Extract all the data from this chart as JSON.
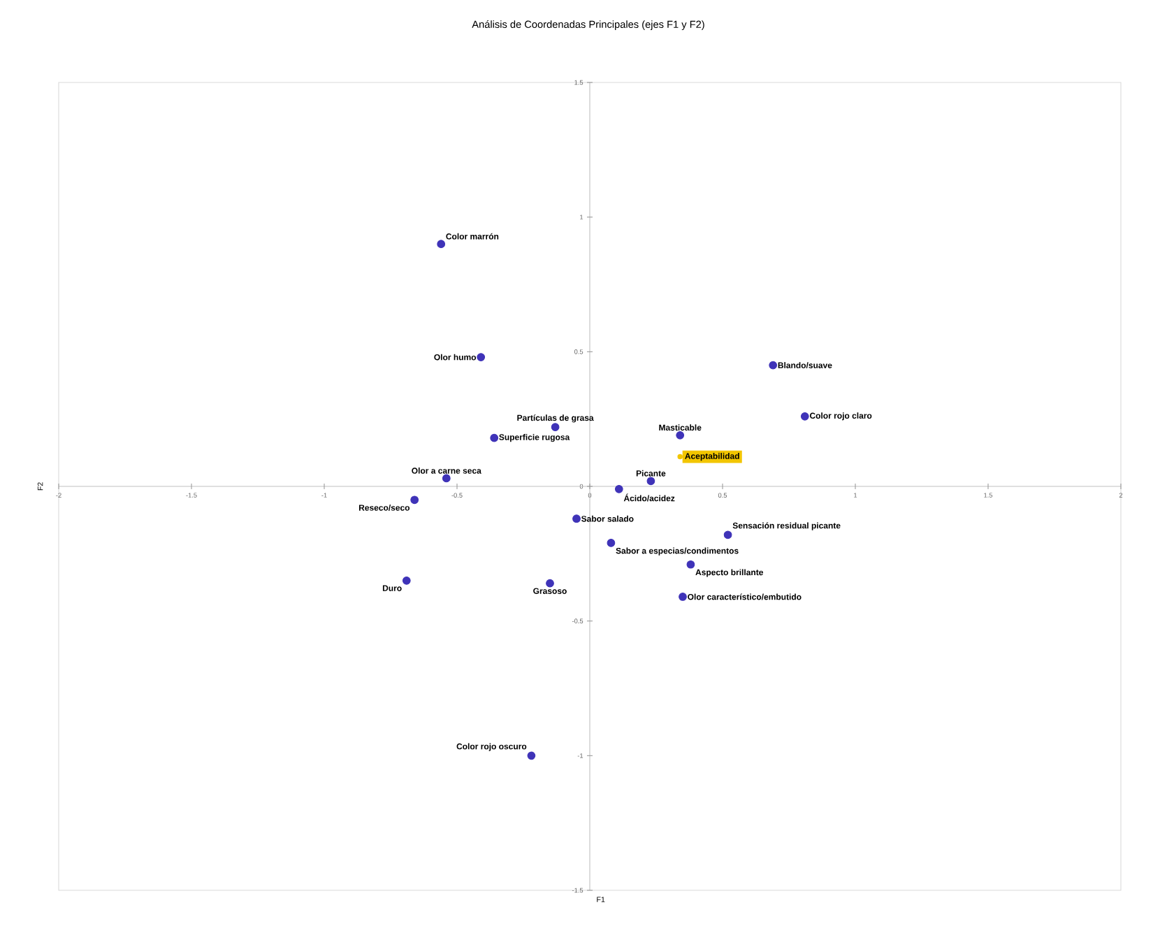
{
  "chart_data": {
    "type": "scatter",
    "title": "Análisis de Coordenadas Principales (ejes F1 y F2)",
    "xlabel": "F1",
    "ylabel": "F2",
    "xlim": [
      -2,
      2
    ],
    "ylim": [
      -1.5,
      1.5
    ],
    "xticks": [
      -2,
      -1.5,
      -1,
      -0.5,
      0,
      0.5,
      1,
      1.5,
      2
    ],
    "yticks": [
      -1.5,
      -1,
      -0.5,
      0,
      0.5,
      1,
      1.5
    ],
    "grid": false,
    "marker": "circle",
    "series": [
      {
        "color": "#3f33b8",
        "x": [
          -0.56,
          -0.41,
          -0.13,
          -0.36,
          -0.54,
          -0.66,
          -0.69,
          -0.15,
          -0.22,
          -0.05,
          0.08,
          0.11,
          0.23,
          0.34,
          0.69,
          0.81,
          0.52,
          0.38,
          0.35
        ],
        "values": [
          0.9,
          0.48,
          0.22,
          0.18,
          0.03,
          -0.05,
          -0.35,
          -0.36,
          -1.0,
          -0.12,
          -0.21,
          -0.01,
          0.02,
          0.19,
          0.45,
          0.26,
          -0.18,
          -0.29,
          -0.41
        ]
      },
      {
        "color": "#f2c500",
        "x": [
          0.34
        ],
        "values": [
          0.11
        ]
      }
    ],
    "annotations": [
      {
        "text": "Color marrón",
        "x": -0.56,
        "y": 0.9
      },
      {
        "text": "Olor humo",
        "x": -0.41,
        "y": 0.48
      },
      {
        "text": "Partículas de grasa",
        "x": -0.13,
        "y": 0.22
      },
      {
        "text": "Superficie rugosa",
        "x": -0.36,
        "y": 0.18
      },
      {
        "text": "Olor a carne seca",
        "x": -0.54,
        "y": 0.03
      },
      {
        "text": "Reseco/seco",
        "x": -0.66,
        "y": -0.05
      },
      {
        "text": "Duro",
        "x": -0.69,
        "y": -0.35
      },
      {
        "text": "Grasoso",
        "x": -0.15,
        "y": -0.36
      },
      {
        "text": "Color rojo oscuro",
        "x": -0.22,
        "y": -1.0
      },
      {
        "text": "Sabor salado",
        "x": -0.05,
        "y": -0.12
      },
      {
        "text": "Sabor a especias/condimentos",
        "x": 0.08,
        "y": -0.21
      },
      {
        "text": "Ácido/acidez",
        "x": 0.11,
        "y": -0.01
      },
      {
        "text": "Picante",
        "x": 0.23,
        "y": 0.02
      },
      {
        "text": "Masticable",
        "x": 0.34,
        "y": 0.19
      },
      {
        "text": "Aceptabilidad",
        "x": 0.34,
        "y": 0.11
      },
      {
        "text": "Blando/suave",
        "x": 0.69,
        "y": 0.45
      },
      {
        "text": "Color rojo claro",
        "x": 0.81,
        "y": 0.26
      },
      {
        "text": "Sensación residual picante",
        "x": 0.52,
        "y": -0.18
      },
      {
        "text": "Aspecto brillante",
        "x": 0.38,
        "y": -0.29
      },
      {
        "text": "Olor característico/embutido",
        "x": 0.35,
        "y": -0.41
      }
    ]
  }
}
